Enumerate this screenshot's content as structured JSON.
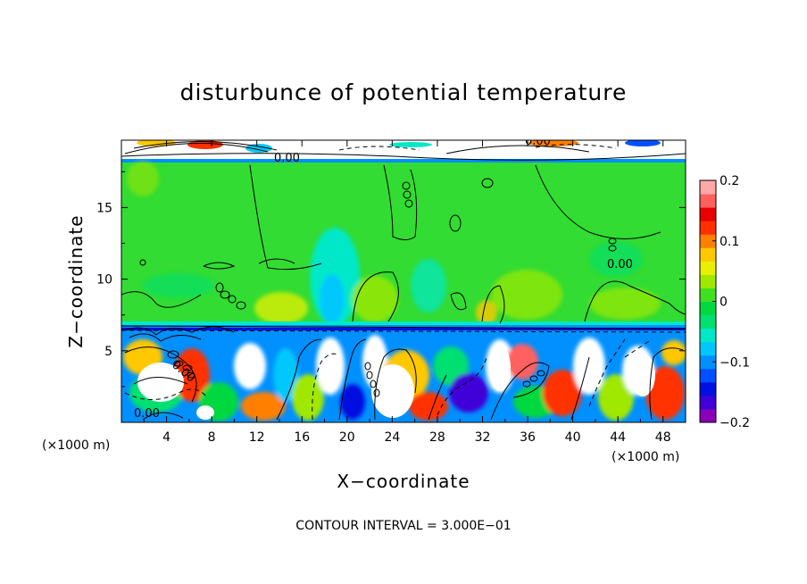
{
  "chart_data": {
    "type": "heatmap",
    "title": "disturbunce of potential temperature",
    "xlabel": "X−coordinate",
    "ylabel": "Z−coordinate",
    "x_unit_label": "(×1000 m)",
    "y_unit_label": "(×1000 m)",
    "xlim": [
      0,
      50
    ],
    "ylim": [
      0,
      19.7
    ],
    "x_ticks": [
      "4",
      "8",
      "12",
      "16",
      "20",
      "24",
      "28",
      "32",
      "36",
      "40",
      "44",
      "48"
    ],
    "y_ticks": [
      "5",
      "10",
      "15"
    ],
    "colorbar": {
      "range": [
        -0.2,
        0.2
      ],
      "tick_labels": [
        "0.2",
        "0.1",
        "0",
        "−0.1",
        "−0.2"
      ],
      "colors": [
        "#8a00b8",
        "#4000d8",
        "#0010e0",
        "#0050ff",
        "#0090ff",
        "#00c8ff",
        "#00e8c8",
        "#00e070",
        "#00d840",
        "#40e020",
        "#a0e800",
        "#e8f000",
        "#ffc800",
        "#ff8000",
        "#ff3000",
        "#e80000",
        "#ff6060",
        "#ffa8a8"
      ]
    },
    "contour_labels": [
      "0.00",
      "0.00",
      "0.00",
      "0.00",
      "0.00"
    ],
    "footer": "CONTOUR INTERVAL = 3.000E−01"
  }
}
